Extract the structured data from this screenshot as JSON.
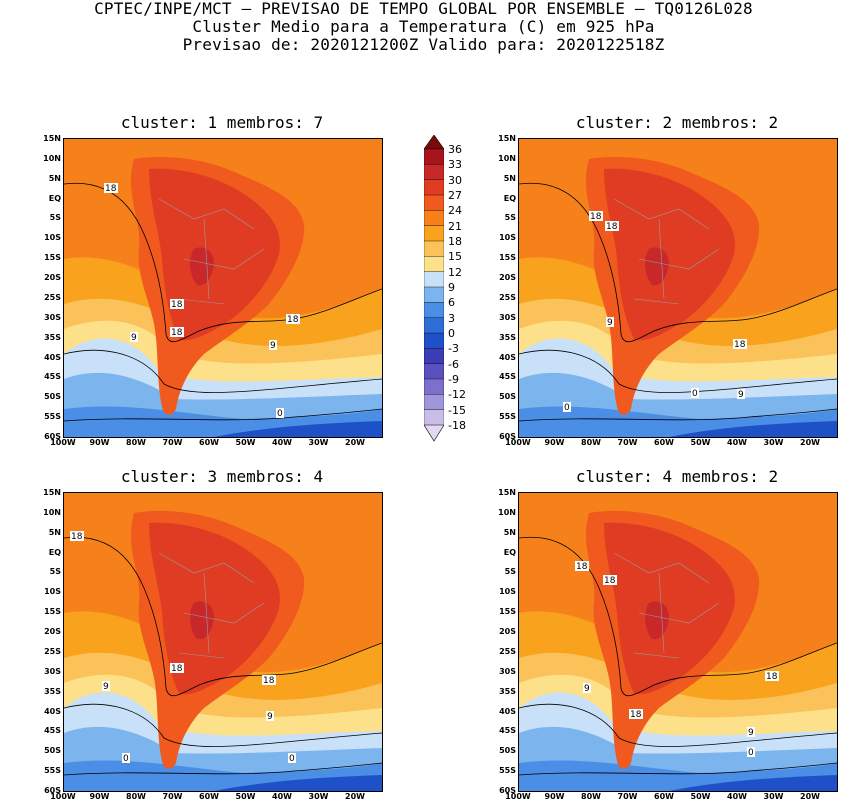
{
  "header": {
    "line1": "CPTEC/INPE/MCT – PREVISAO DE TEMPO GLOBAL POR ENSEMBLE – TQ0126L028",
    "line2": "Cluster Medio para a Temperatura (C) em 925 hPa",
    "line3": "Previsao de: 2020121200Z   Valido para: 2020122518Z"
  },
  "panels": [
    {
      "title": "cluster: 1   membros: 7",
      "contour_labels": [
        "18",
        "18",
        "18",
        "18",
        "9",
        "9",
        "0"
      ]
    },
    {
      "title": "cluster: 2   membros: 2",
      "contour_labels": [
        "18",
        "18",
        "9",
        "18",
        "9",
        "0",
        "0"
      ]
    },
    {
      "title": "cluster: 3   membros: 4",
      "contour_labels": [
        "18",
        "18",
        "18",
        "9",
        "9",
        "0",
        "0"
      ]
    },
    {
      "title": "cluster: 4   membros: 2",
      "contour_labels": [
        "18",
        "18",
        "18",
        "9",
        "18",
        "9",
        "0"
      ]
    }
  ],
  "lat_labels": [
    "15N",
    "10N",
    "5N",
    "EQ",
    "5S",
    "10S",
    "15S",
    "20S",
    "25S",
    "30S",
    "35S",
    "40S",
    "45S",
    "50S",
    "55S",
    "60S"
  ],
  "lon_labels": [
    "100W",
    "90W",
    "80W",
    "70W",
    "60W",
    "50W",
    "40W",
    "30W",
    "20W"
  ],
  "colorbar": {
    "labels": [
      "36",
      "33",
      "30",
      "27",
      "24",
      "21",
      "18",
      "15",
      "12",
      "9",
      "6",
      "3",
      "0",
      "-3",
      "-6",
      "-9",
      "-12",
      "-15",
      "-18"
    ],
    "colors": [
      "#7a0a0a",
      "#a8141c",
      "#c8282a",
      "#e03c23",
      "#f05a1e",
      "#f6801a",
      "#f8a21e",
      "#fbc25a",
      "#fde08a",
      "#c8e0f8",
      "#7cb4ee",
      "#4a8ee6",
      "#2f6ed8",
      "#1e50c8",
      "#3c3cb4",
      "#5a50c0",
      "#7c70cc",
      "#a096dc",
      "#c8bee8",
      "#e2d8f4"
    ]
  }
}
